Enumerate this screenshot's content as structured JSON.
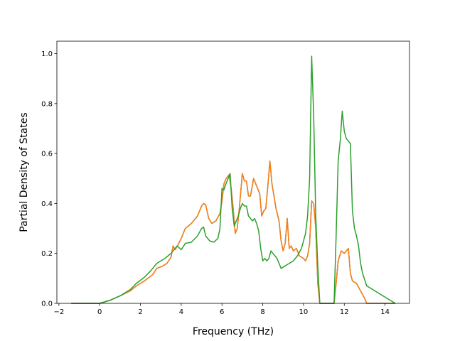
{
  "chart_data": {
    "type": "line",
    "xlabel": "Frequency (THz)",
    "ylabel": "Partial Density of States",
    "xlim": [
      -2.1,
      15.2
    ],
    "ylim": [
      0,
      1.05
    ],
    "xticks": [
      -2,
      0,
      2,
      4,
      6,
      8,
      10,
      12,
      14
    ],
    "xtick_labels": [
      "−2",
      "0",
      "2",
      "4",
      "6",
      "8",
      "10",
      "12",
      "14"
    ],
    "yticks": [
      0,
      0.2,
      0.4,
      0.6,
      0.8,
      1.0
    ],
    "ytick_labels": [
      "0.0",
      "0.2",
      "0.4",
      "0.6",
      "0.8",
      "1.0"
    ],
    "grid": false,
    "series": [
      {
        "color": "#1f77b4",
        "x": [
          -1.4,
          0.0,
          0.5,
          1.0,
          1.5,
          1.8,
          2.2,
          2.6,
          2.8,
          3.1,
          3.3,
          3.5,
          3.6,
          3.7,
          3.85,
          4.0,
          4.2,
          4.5,
          4.8,
          5.0,
          5.1,
          5.2,
          5.35,
          5.5,
          5.7,
          5.9,
          6.0,
          6.1,
          6.2,
          6.35,
          6.45,
          6.55,
          6.65,
          6.75,
          6.85,
          7.0,
          7.1,
          7.2,
          7.3,
          7.4,
          7.55,
          7.7,
          7.85,
          7.95,
          8.05,
          8.15,
          8.25,
          8.35,
          8.45,
          8.55,
          8.65,
          8.8,
          8.9,
          9.0,
          9.1,
          9.2,
          9.3,
          9.4,
          9.5,
          9.65,
          9.8,
          10.0,
          10.1,
          10.2,
          10.3,
          10.4,
          10.5,
          10.6,
          10.7,
          10.8,
          11.5,
          11.6,
          11.7,
          11.85,
          12.0,
          12.2,
          12.3,
          12.4,
          12.6,
          12.8,
          13.0,
          13.1,
          14.5
        ],
        "values": [
          0,
          0,
          0.012,
          0.03,
          0.05,
          0.07,
          0.09,
          0.115,
          0.14,
          0.15,
          0.16,
          0.185,
          0.23,
          0.215,
          0.235,
          0.26,
          0.3,
          0.32,
          0.35,
          0.39,
          0.4,
          0.395,
          0.34,
          0.32,
          0.33,
          0.36,
          0.41,
          0.48,
          0.5,
          0.515,
          0.46,
          0.38,
          0.28,
          0.3,
          0.38,
          0.52,
          0.49,
          0.49,
          0.43,
          0.43,
          0.5,
          0.47,
          0.44,
          0.35,
          0.37,
          0.38,
          0.47,
          0.57,
          0.48,
          0.43,
          0.38,
          0.33,
          0.25,
          0.21,
          0.24,
          0.34,
          0.22,
          0.23,
          0.21,
          0.22,
          0.19,
          0.18,
          0.17,
          0.19,
          0.24,
          0.41,
          0.4,
          0.3,
          0.08,
          0,
          0,
          0.08,
          0.17,
          0.21,
          0.2,
          0.22,
          0.12,
          0.09,
          0.08,
          0.05,
          0.02,
          0,
          0
        ]
      },
      {
        "color": "#ff7f0e",
        "x": [
          -1.4,
          0.0,
          0.5,
          1.0,
          1.5,
          1.8,
          2.2,
          2.6,
          2.8,
          3.1,
          3.3,
          3.5,
          3.6,
          3.7,
          3.85,
          4.0,
          4.2,
          4.5,
          4.8,
          5.0,
          5.1,
          5.2,
          5.35,
          5.5,
          5.7,
          5.9,
          6.0,
          6.1,
          6.2,
          6.35,
          6.45,
          6.55,
          6.65,
          6.75,
          6.85,
          7.0,
          7.1,
          7.2,
          7.3,
          7.4,
          7.55,
          7.7,
          7.85,
          7.95,
          8.05,
          8.15,
          8.25,
          8.35,
          8.45,
          8.55,
          8.65,
          8.8,
          8.9,
          9.0,
          9.1,
          9.2,
          9.3,
          9.4,
          9.5,
          9.65,
          9.8,
          10.0,
          10.1,
          10.2,
          10.3,
          10.4,
          10.5,
          10.6,
          10.7,
          10.8,
          11.5,
          11.6,
          11.7,
          11.85,
          12.0,
          12.2,
          12.3,
          12.4,
          12.6,
          12.8,
          13.0,
          13.1,
          14.5
        ],
        "values": [
          0,
          0,
          0.012,
          0.03,
          0.05,
          0.07,
          0.09,
          0.115,
          0.14,
          0.15,
          0.16,
          0.185,
          0.23,
          0.215,
          0.235,
          0.26,
          0.3,
          0.32,
          0.35,
          0.39,
          0.4,
          0.395,
          0.34,
          0.32,
          0.33,
          0.36,
          0.41,
          0.48,
          0.5,
          0.515,
          0.46,
          0.38,
          0.28,
          0.3,
          0.38,
          0.52,
          0.49,
          0.49,
          0.43,
          0.43,
          0.5,
          0.47,
          0.44,
          0.35,
          0.37,
          0.38,
          0.47,
          0.57,
          0.48,
          0.43,
          0.38,
          0.33,
          0.25,
          0.21,
          0.24,
          0.34,
          0.22,
          0.23,
          0.21,
          0.22,
          0.19,
          0.18,
          0.17,
          0.19,
          0.24,
          0.41,
          0.4,
          0.3,
          0.08,
          0,
          0,
          0.08,
          0.17,
          0.21,
          0.2,
          0.22,
          0.12,
          0.09,
          0.08,
          0.05,
          0.02,
          0,
          0
        ]
      },
      {
        "color": "#2ca02c",
        "x": [
          -1.4,
          0.0,
          0.5,
          1.0,
          1.5,
          1.8,
          2.2,
          2.5,
          2.8,
          3.2,
          3.5,
          3.8,
          4.0,
          4.2,
          4.5,
          4.8,
          5.0,
          5.1,
          5.2,
          5.4,
          5.6,
          5.8,
          5.9,
          6.0,
          6.1,
          6.2,
          6.3,
          6.4,
          6.5,
          6.6,
          6.7,
          6.8,
          6.9,
          7.0,
          7.1,
          7.2,
          7.3,
          7.5,
          7.6,
          7.7,
          7.8,
          7.9,
          8.0,
          8.1,
          8.2,
          8.3,
          8.4,
          8.5,
          8.7,
          8.9,
          9.1,
          9.3,
          9.5,
          9.7,
          9.9,
          10.1,
          10.2,
          10.3,
          10.4,
          10.5,
          10.6,
          10.7,
          10.8,
          11.5,
          11.6,
          11.7,
          11.8,
          11.9,
          12.0,
          12.1,
          12.2,
          12.3,
          12.4,
          12.5,
          12.6,
          12.7,
          12.8,
          12.9,
          13.1,
          14.5
        ],
        "values": [
          0,
          0,
          0.012,
          0.03,
          0.055,
          0.08,
          0.105,
          0.13,
          0.16,
          0.18,
          0.2,
          0.23,
          0.215,
          0.24,
          0.245,
          0.27,
          0.3,
          0.305,
          0.27,
          0.25,
          0.245,
          0.26,
          0.3,
          0.46,
          0.455,
          0.48,
          0.5,
          0.52,
          0.38,
          0.31,
          0.33,
          0.35,
          0.38,
          0.4,
          0.39,
          0.39,
          0.35,
          0.33,
          0.34,
          0.32,
          0.29,
          0.22,
          0.17,
          0.18,
          0.17,
          0.18,
          0.21,
          0.2,
          0.18,
          0.14,
          0.15,
          0.16,
          0.17,
          0.19,
          0.22,
          0.28,
          0.35,
          0.5,
          0.99,
          0.75,
          0.35,
          0.15,
          0,
          0,
          0.27,
          0.57,
          0.65,
          0.77,
          0.69,
          0.66,
          0.65,
          0.64,
          0.37,
          0.3,
          0.27,
          0.23,
          0.16,
          0.12,
          0.07,
          0
        ]
      }
    ]
  }
}
